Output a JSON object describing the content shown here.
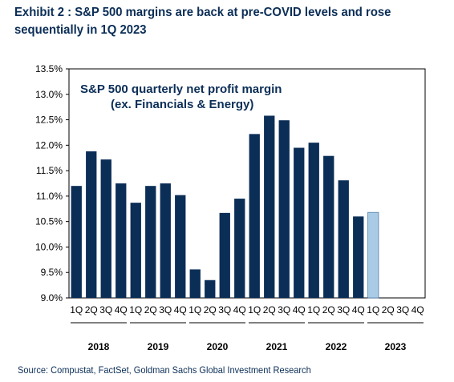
{
  "title": "Exhibit 2 : S&P 500 margins are back at pre-COVID levels and rose sequentially in 1Q 2023",
  "source": "Source: Compustat, FactSet, Goldman Sachs Global Investment Research",
  "colors": {
    "bar": "#0b2e57",
    "highlight": "#a9cbe6",
    "title": "#0b2e57"
  },
  "chart_data": {
    "type": "bar",
    "title": "S&P 500 quarterly net profit margin",
    "subtitle": "(ex. Financials & Energy)",
    "ylim": [
      9.0,
      13.5
    ],
    "yticks": [
      "9.0%",
      "9.5%",
      "10.0%",
      "10.5%",
      "11.0%",
      "11.5%",
      "12.0%",
      "12.5%",
      "13.0%",
      "13.5%"
    ],
    "quarters": [
      "1Q",
      "2Q",
      "3Q",
      "4Q",
      "1Q",
      "2Q",
      "3Q",
      "4Q",
      "1Q",
      "2Q",
      "3Q",
      "4Q",
      "1Q",
      "2Q",
      "3Q",
      "4Q",
      "1Q",
      "2Q",
      "3Q",
      "4Q",
      "1Q",
      "2Q",
      "3Q",
      "4Q"
    ],
    "years": [
      "2018",
      "2019",
      "2020",
      "2021",
      "2022",
      "2023"
    ],
    "values": [
      11.2,
      11.88,
      11.72,
      11.25,
      10.87,
      11.2,
      11.25,
      11.02,
      9.56,
      9.35,
      10.67,
      10.95,
      12.22,
      12.58,
      12.49,
      11.95,
      12.05,
      11.79,
      11.31,
      10.6,
      10.68,
      null,
      null,
      null
    ],
    "highlight_index": 20,
    "grid": false,
    "legend": "none"
  }
}
